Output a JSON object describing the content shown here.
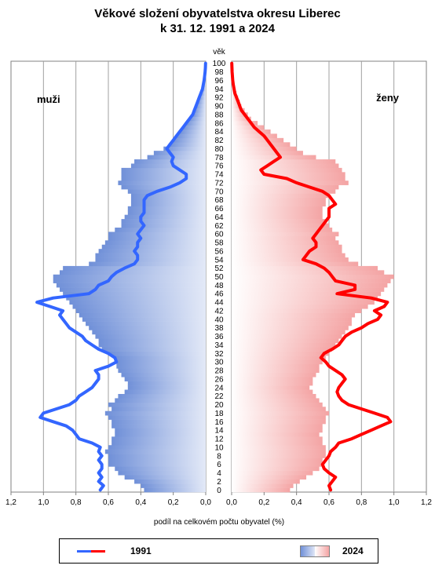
{
  "title_line1": "Věkové složení obyvatelstva okresu Liberec",
  "title_line2": "k 31. 12. 1991 a 2024",
  "chart_data": {
    "type": "population-pyramid",
    "age_axis_label": "věk",
    "left_label": "muži",
    "right_label": "ženy",
    "xlabel": "podíl na celkovém počtu obyvatel (%)",
    "xlim": [
      0,
      1.2
    ],
    "x_ticks": [
      "0,0",
      "0,2",
      "0,4",
      "0,6",
      "0,8",
      "1,0",
      "1,2"
    ],
    "age_ticks": [
      0,
      2,
      4,
      6,
      8,
      10,
      12,
      14,
      16,
      18,
      20,
      22,
      24,
      26,
      28,
      30,
      32,
      34,
      36,
      38,
      40,
      42,
      44,
      46,
      48,
      50,
      52,
      54,
      56,
      58,
      60,
      62,
      64,
      66,
      68,
      70,
      72,
      74,
      76,
      78,
      80,
      82,
      84,
      86,
      88,
      90,
      92,
      94,
      96,
      98,
      100
    ],
    "ages": [
      0,
      1,
      2,
      3,
      4,
      5,
      6,
      7,
      8,
      9,
      10,
      11,
      12,
      13,
      14,
      15,
      16,
      17,
      18,
      19,
      20,
      21,
      22,
      23,
      24,
      25,
      26,
      27,
      28,
      29,
      30,
      31,
      32,
      33,
      34,
      35,
      36,
      37,
      38,
      39,
      40,
      41,
      42,
      43,
      44,
      45,
      46,
      47,
      48,
      49,
      50,
      51,
      52,
      53,
      54,
      55,
      56,
      57,
      58,
      59,
      60,
      61,
      62,
      63,
      64,
      65,
      66,
      67,
      68,
      69,
      70,
      71,
      72,
      73,
      74,
      75,
      76,
      77,
      78,
      79,
      80,
      81,
      82,
      83,
      84,
      85,
      86,
      87,
      88,
      89,
      90,
      91,
      92,
      93,
      94,
      95,
      96,
      97,
      98,
      99,
      100
    ],
    "series": [
      {
        "name": "1991",
        "style": "line",
        "color_male": "#3366ff",
        "color_female": "#ff0000",
        "male": [
          0.65,
          0.63,
          0.66,
          0.64,
          0.66,
          0.64,
          0.64,
          0.66,
          0.64,
          0.66,
          0.65,
          0.7,
          0.78,
          0.8,
          0.82,
          0.86,
          0.94,
          1.02,
          1.0,
          0.92,
          0.84,
          0.8,
          0.78,
          0.74,
          0.7,
          0.68,
          0.66,
          0.66,
          0.68,
          0.6,
          0.55,
          0.56,
          0.6,
          0.66,
          0.7,
          0.74,
          0.76,
          0.8,
          0.84,
          0.86,
          0.88,
          0.9,
          0.88,
          0.96,
          1.04,
          0.94,
          0.72,
          0.68,
          0.66,
          0.6,
          0.58,
          0.55,
          0.5,
          0.44,
          0.42,
          0.42,
          0.44,
          0.42,
          0.42,
          0.4,
          0.42,
          0.4,
          0.38,
          0.4,
          0.4,
          0.38,
          0.38,
          0.38,
          0.38,
          0.36,
          0.3,
          0.22,
          0.16,
          0.12,
          0.12,
          0.16,
          0.2,
          0.21,
          0.2,
          0.22,
          0.24,
          0.22,
          0.2,
          0.18,
          0.16,
          0.14,
          0.12,
          0.1,
          0.08,
          0.07,
          0.06,
          0.05,
          0.04,
          0.03,
          0.02,
          0.015,
          0.01,
          0.007,
          0.004,
          0.002,
          0.001
        ],
        "female": [
          0.61,
          0.6,
          0.62,
          0.64,
          0.6,
          0.57,
          0.56,
          0.58,
          0.6,
          0.61,
          0.64,
          0.66,
          0.74,
          0.8,
          0.86,
          0.92,
          0.98,
          0.96,
          0.88,
          0.8,
          0.72,
          0.68,
          0.66,
          0.65,
          0.66,
          0.68,
          0.7,
          0.68,
          0.64,
          0.6,
          0.58,
          0.55,
          0.57,
          0.62,
          0.66,
          0.68,
          0.7,
          0.74,
          0.8,
          0.84,
          0.9,
          0.92,
          0.88,
          0.94,
          0.96,
          0.86,
          0.65,
          0.76,
          0.76,
          0.64,
          0.62,
          0.6,
          0.57,
          0.52,
          0.44,
          0.46,
          0.48,
          0.52,
          0.52,
          0.5,
          0.52,
          0.54,
          0.56,
          0.58,
          0.6,
          0.6,
          0.6,
          0.64,
          0.62,
          0.6,
          0.56,
          0.48,
          0.4,
          0.34,
          0.2,
          0.18,
          0.22,
          0.26,
          0.3,
          0.28,
          0.26,
          0.24,
          0.22,
          0.2,
          0.17,
          0.14,
          0.12,
          0.1,
          0.08,
          0.06,
          0.05,
          0.04,
          0.03,
          0.02,
          0.015,
          0.01,
          0.007,
          0.005,
          0.003,
          0.002,
          0.001
        ]
      },
      {
        "name": "2024",
        "style": "bar",
        "color_male_outer": "#7090d8",
        "color_male_inner": "#dfe6f6",
        "color_female_outer": "#f4a4a4",
        "color_female_inner": "#ffffff",
        "male": [
          0.38,
          0.4,
          0.44,
          0.5,
          0.54,
          0.56,
          0.6,
          0.6,
          0.6,
          0.62,
          0.6,
          0.58,
          0.58,
          0.56,
          0.56,
          0.58,
          0.58,
          0.6,
          0.62,
          0.58,
          0.6,
          0.56,
          0.54,
          0.5,
          0.48,
          0.48,
          0.5,
          0.52,
          0.54,
          0.55,
          0.55,
          0.56,
          0.6,
          0.64,
          0.66,
          0.66,
          0.68,
          0.7,
          0.72,
          0.74,
          0.76,
          0.78,
          0.8,
          0.82,
          0.84,
          0.86,
          0.88,
          0.9,
          0.92,
          0.94,
          0.94,
          0.9,
          0.88,
          0.72,
          0.68,
          0.68,
          0.66,
          0.64,
          0.62,
          0.6,
          0.6,
          0.56,
          0.52,
          0.52,
          0.5,
          0.48,
          0.48,
          0.46,
          0.46,
          0.46,
          0.48,
          0.52,
          0.54,
          0.52,
          0.52,
          0.52,
          0.46,
          0.44,
          0.36,
          0.32,
          0.26,
          0.22,
          0.2,
          0.18,
          0.16,
          0.14,
          0.12,
          0.1,
          0.08,
          0.07,
          0.06,
          0.05,
          0.04,
          0.03,
          0.02,
          0.015,
          0.01,
          0.007,
          0.004,
          0.002,
          0.001
        ],
        "female": [
          0.36,
          0.38,
          0.42,
          0.46,
          0.5,
          0.54,
          0.56,
          0.56,
          0.58,
          0.58,
          0.58,
          0.56,
          0.56,
          0.54,
          0.56,
          0.56,
          0.58,
          0.58,
          0.6,
          0.58,
          0.56,
          0.54,
          0.52,
          0.5,
          0.48,
          0.5,
          0.5,
          0.52,
          0.54,
          0.54,
          0.56,
          0.58,
          0.6,
          0.62,
          0.64,
          0.66,
          0.68,
          0.7,
          0.72,
          0.74,
          0.74,
          0.76,
          0.8,
          0.84,
          0.88,
          0.9,
          0.92,
          0.94,
          0.96,
          0.98,
          1.0,
          0.94,
          0.9,
          0.78,
          0.72,
          0.7,
          0.68,
          0.68,
          0.66,
          0.64,
          0.66,
          0.62,
          0.6,
          0.58,
          0.56,
          0.56,
          0.56,
          0.58,
          0.58,
          0.6,
          0.64,
          0.66,
          0.72,
          0.7,
          0.7,
          0.68,
          0.66,
          0.64,
          0.52,
          0.44,
          0.4,
          0.36,
          0.32,
          0.28,
          0.24,
          0.2,
          0.16,
          0.12,
          0.1,
          0.08,
          0.06,
          0.05,
          0.04,
          0.03,
          0.02,
          0.015,
          0.01,
          0.007,
          0.004,
          0.002,
          0.001
        ]
      }
    ]
  },
  "legend": {
    "line_label": "1991",
    "bar_label": "2024"
  }
}
